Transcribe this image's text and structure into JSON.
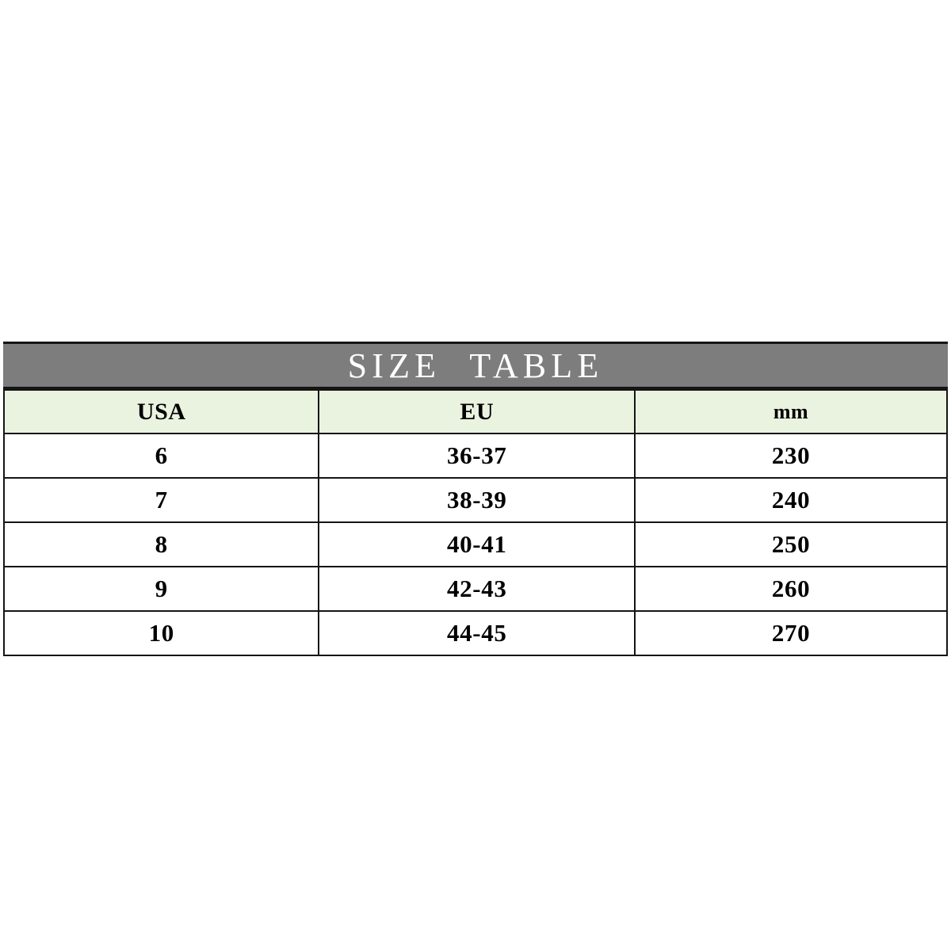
{
  "header": {
    "title": "SIZE TABLE"
  },
  "table": {
    "columns": [
      "USA",
      "EU",
      "mm"
    ],
    "rows": [
      [
        "6",
        "36-37",
        "230"
      ],
      [
        "7",
        "38-39",
        "240"
      ],
      [
        "8",
        "40-41",
        "250"
      ],
      [
        "9",
        "42-43",
        "260"
      ],
      [
        "10",
        "44-45",
        "270"
      ]
    ]
  },
  "colors": {
    "title_band_bg": "#7d7d7d",
    "title_text": "#ffffff",
    "header_row_bg": "#eaf2e0",
    "border": "#151515",
    "page_bg": "#ffffff"
  }
}
